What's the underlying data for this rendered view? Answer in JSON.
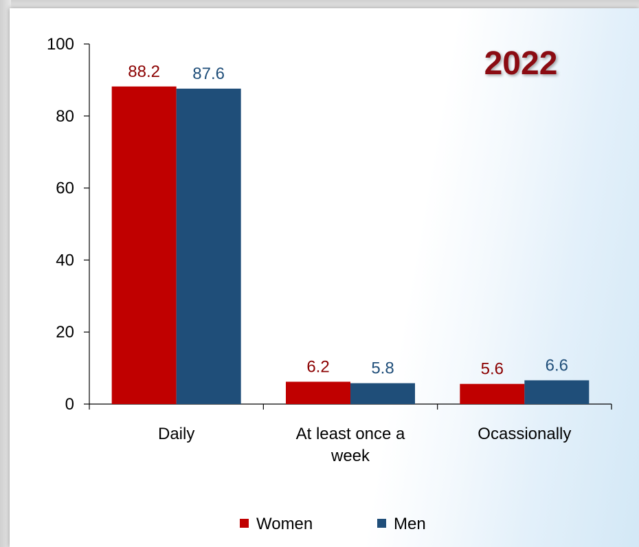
{
  "chart_data": {
    "type": "bar",
    "title": "2022",
    "categories": [
      [
        "Daily"
      ],
      [
        "At least once a",
        "week"
      ],
      [
        "Ocassionally"
      ]
    ],
    "series": [
      {
        "name": "Women",
        "values": [
          88.2,
          6.2,
          5.6
        ],
        "color": "#c00000",
        "label_color": "#8b0000"
      },
      {
        "name": "Men",
        "values": [
          87.6,
          5.8,
          6.6
        ],
        "color": "#1f4e79",
        "label_color": "#1f4e79"
      }
    ],
    "yticks": [
      "0",
      "20",
      "40",
      "60",
      "80",
      "100"
    ],
    "ylim": [
      0,
      100
    ],
    "grid": false,
    "legend_position": "bottom"
  }
}
